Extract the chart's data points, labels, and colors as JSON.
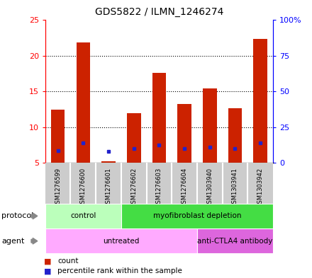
{
  "title": "GDS5822 / ILMN_1246274",
  "samples": [
    "GSM1276599",
    "GSM1276600",
    "GSM1276601",
    "GSM1276602",
    "GSM1276603",
    "GSM1276604",
    "GSM1303940",
    "GSM1303941",
    "GSM1303942"
  ],
  "counts": [
    12.4,
    21.9,
    5.2,
    11.9,
    17.6,
    13.2,
    15.4,
    12.6,
    22.4
  ],
  "percentiles": [
    8.6,
    14.0,
    7.9,
    9.9,
    12.6,
    9.9,
    10.9,
    9.9,
    14.0
  ],
  "bar_bottom": 5.0,
  "ylim_left": [
    5,
    25
  ],
  "ylim_right": [
    0,
    100
  ],
  "yticks_left": [
    5,
    10,
    15,
    20,
    25
  ],
  "yticks_right": [
    0,
    25,
    50,
    75,
    100
  ],
  "yticklabels_right": [
    "0",
    "25",
    "50",
    "75",
    "100%"
  ],
  "bar_color": "#cc2200",
  "dot_color": "#2222cc",
  "grid_color": "#000000",
  "protocol_groups": [
    {
      "label": "control",
      "start": 0,
      "end": 3,
      "color": "#bbffbb"
    },
    {
      "label": "myofibroblast depletion",
      "start": 3,
      "end": 9,
      "color": "#44dd44"
    }
  ],
  "agent_groups": [
    {
      "label": "untreated",
      "start": 0,
      "end": 6,
      "color": "#ffaaff"
    },
    {
      "label": "anti-CTLA4 antibody",
      "start": 6,
      "end": 9,
      "color": "#dd66dd"
    }
  ],
  "protocol_label": "protocol",
  "agent_label": "agent",
  "legend_count_label": "count",
  "legend_percentile_label": "percentile rank within the sample",
  "bar_width": 0.55,
  "label_box_color": "#cccccc",
  "label_box_edge_color": "#ffffff",
  "spine_color_left": "red",
  "spine_color_right": "blue",
  "arrow_color": "#888888"
}
